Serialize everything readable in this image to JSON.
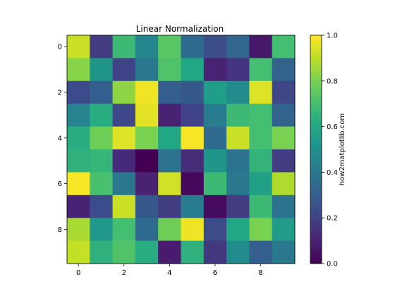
{
  "chart_data": {
    "type": "heatmap",
    "title": "Linear Normalization",
    "x_ticks": [
      "0",
      "2",
      "4",
      "6",
      "8"
    ],
    "y_ticks": [
      "0",
      "2",
      "4",
      "6",
      "8"
    ],
    "xlim": [
      -0.5,
      9.5
    ],
    "ylim": [
      -0.5,
      9.5
    ],
    "colorbar": {
      "label": "how2matplotlib.com",
      "range": [
        0.0,
        1.0
      ],
      "ticks": [
        "0.0",
        "0.2",
        "0.4",
        "0.6",
        "0.8",
        "1.0"
      ],
      "colormap": "viridis"
    },
    "grid": false,
    "values": [
      [
        0.92,
        0.18,
        0.68,
        0.46,
        0.74,
        0.35,
        0.24,
        0.33,
        0.07,
        0.7
      ],
      [
        0.82,
        0.52,
        0.2,
        0.4,
        0.72,
        0.6,
        0.1,
        0.15,
        0.7,
        0.32
      ],
      [
        0.23,
        0.3,
        0.83,
        0.98,
        0.3,
        0.28,
        0.56,
        0.48,
        0.95,
        0.22
      ],
      [
        0.45,
        0.62,
        0.22,
        0.96,
        0.1,
        0.2,
        0.42,
        0.68,
        0.7,
        0.32
      ],
      [
        0.62,
        0.78,
        0.95,
        0.8,
        0.6,
        0.99,
        0.35,
        0.92,
        0.7,
        0.8
      ],
      [
        0.64,
        0.66,
        0.12,
        0.0,
        0.38,
        0.13,
        0.52,
        0.38,
        0.65,
        0.18
      ],
      [
        0.99,
        0.71,
        0.4,
        0.1,
        0.93,
        0.02,
        0.68,
        0.4,
        0.57,
        0.88
      ],
      [
        0.1,
        0.23,
        0.92,
        0.28,
        0.18,
        0.42,
        0.03,
        0.18,
        0.68,
        0.38
      ],
      [
        0.87,
        0.53,
        0.7,
        0.35,
        0.78,
        0.98,
        0.23,
        0.6,
        0.8,
        0.55
      ],
      [
        0.91,
        0.64,
        0.72,
        0.62,
        0.08,
        0.64,
        0.17,
        0.48,
        0.3,
        0.4
      ]
    ]
  }
}
